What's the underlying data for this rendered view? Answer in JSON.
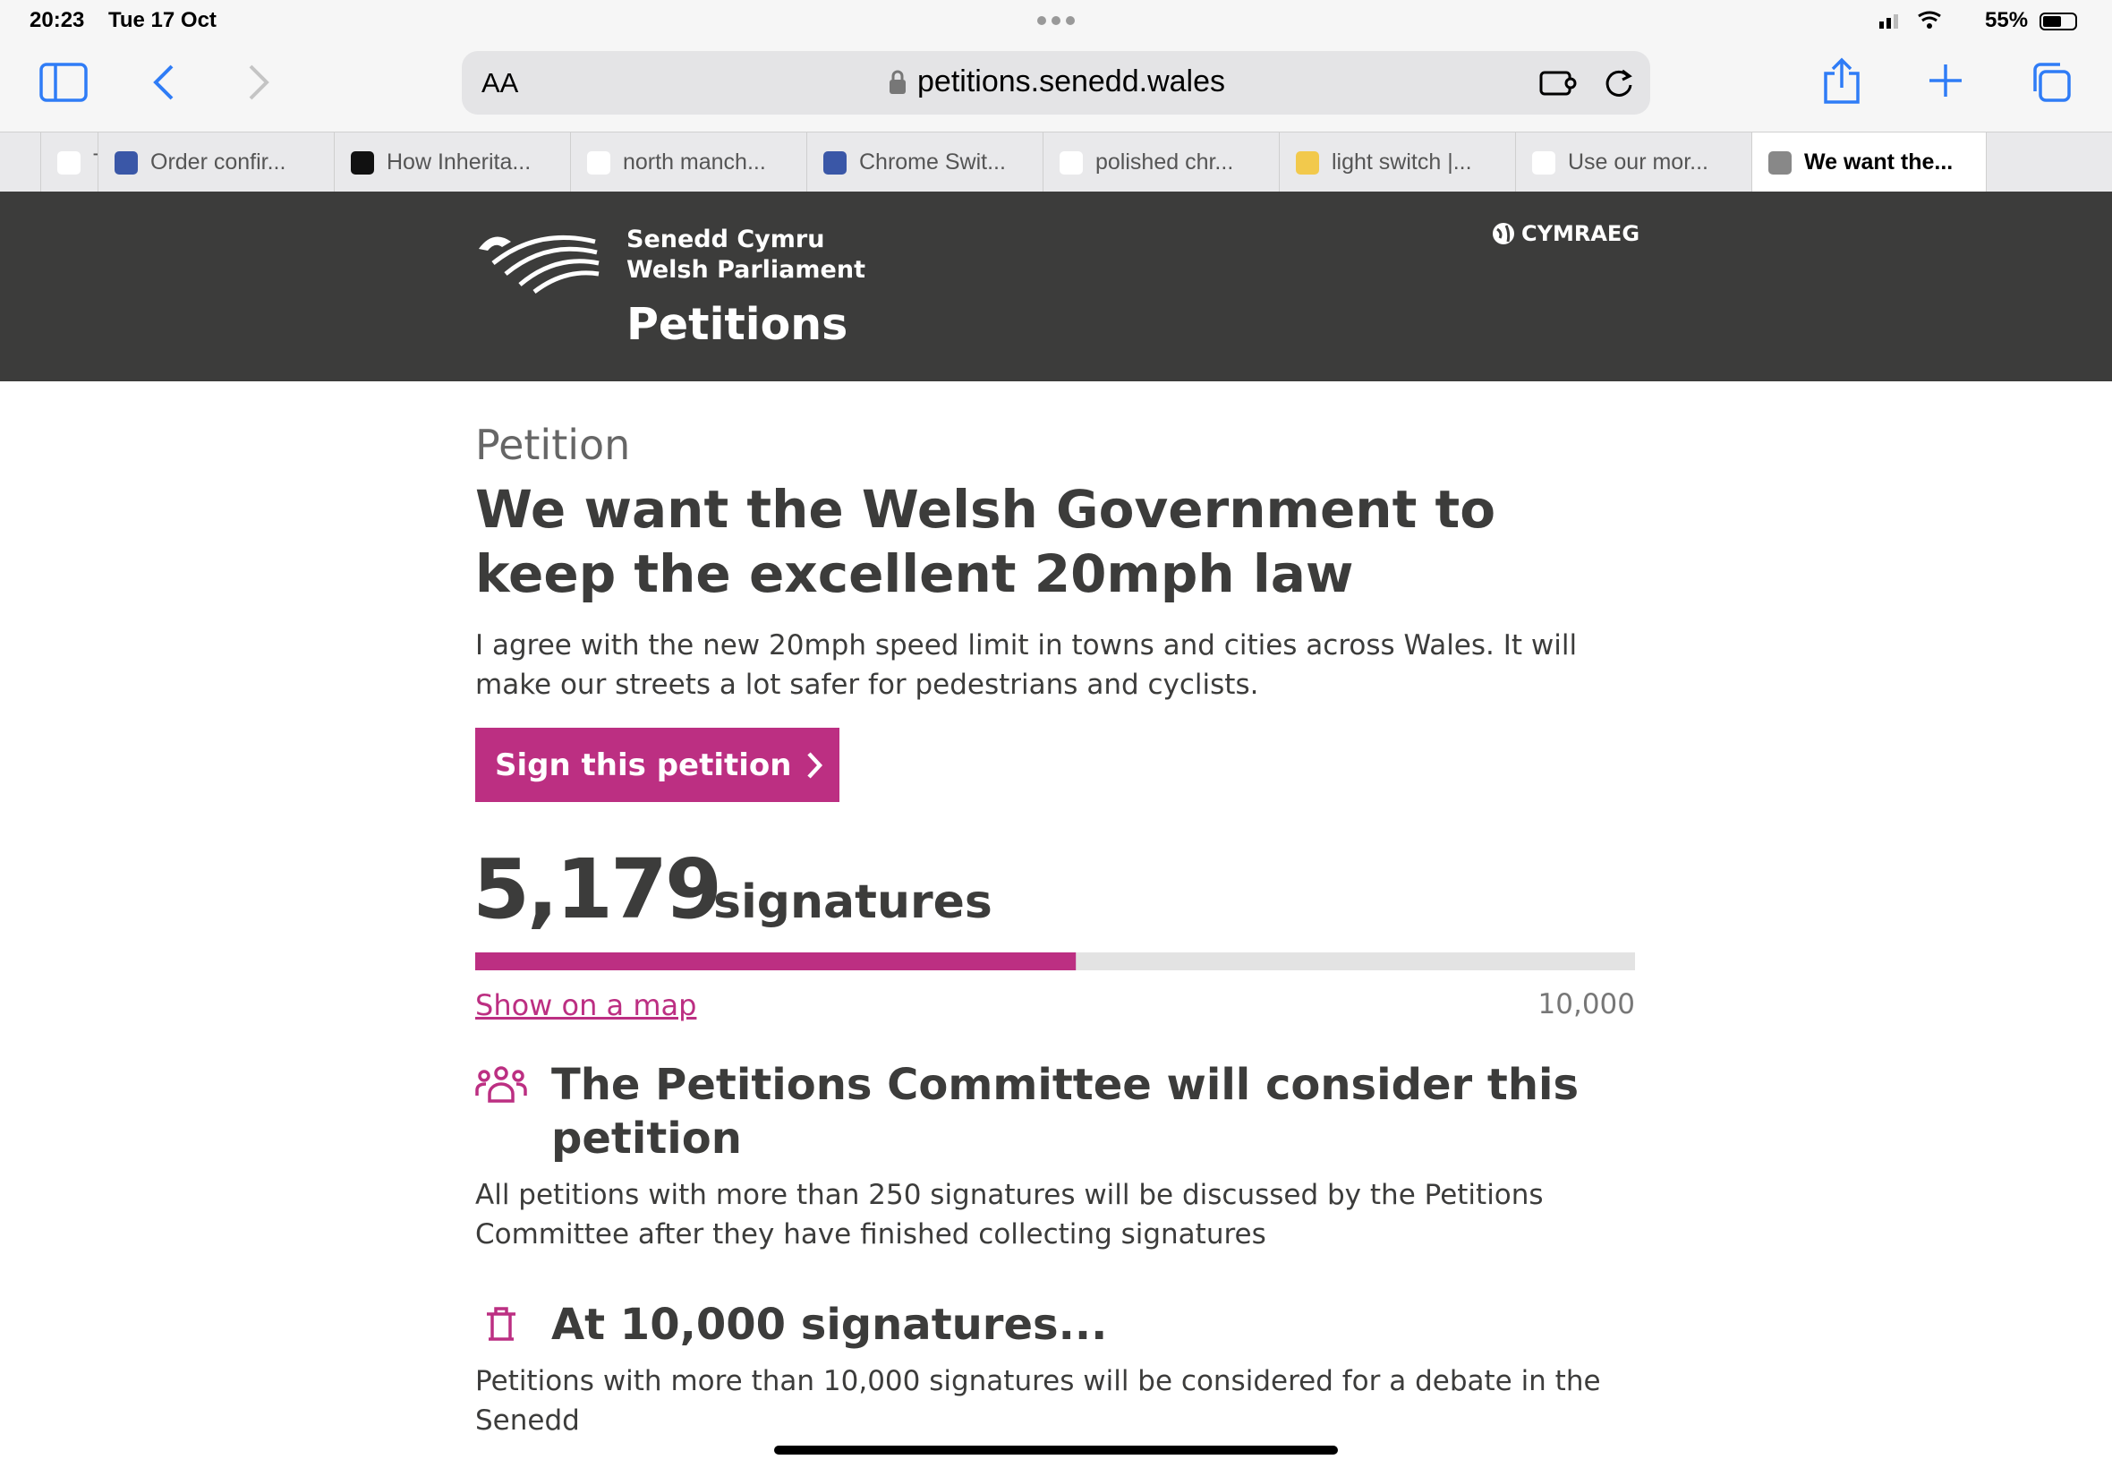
{
  "status_bar": {
    "time": "20:23",
    "date": "Tue 17 Oct",
    "battery": "55%"
  },
  "browser": {
    "text_size": "AA",
    "url": "petitions.senedd.wales",
    "tabs": [
      "",
      "The U",
      "Order confir...",
      "How Inherita...",
      "north manch...",
      "Chrome Swit...",
      "polished chr...",
      "light switch |...",
      "Use our mor...",
      "We want the..."
    ]
  },
  "header": {
    "org_line_1": "Senedd Cymru",
    "org_line_2": "Welsh Parliament",
    "section": "Petitions",
    "language_link": "CYMRAEG"
  },
  "petition": {
    "label": "Petition",
    "title_lines": [
      "We want the Welsh Government to",
      "keep the excellent 20mph law"
    ],
    "description": "I agree with the new 20mph speed limit in towns and cities across Wales. It will make our streets a lot safer for pedestrians and cyclists.",
    "sign_button": "Sign this petition",
    "signatures": {
      "value": 5179,
      "label": "5,179"
    },
    "signatures_word": "signatures",
    "map_link": "Show on a map",
    "goal": {
      "value": 10000,
      "label": "10,000"
    },
    "sections": [
      {
        "heading": "The Petitions Committee will consider this petition",
        "text": "All petitions with more than 250 signatures will be discussed by the Petitions Committee after they have finished collecting signatures"
      },
      {
        "heading": "At 10,000 signatures...",
        "text": "Petitions with more than 10,000 signatures will be considered for a debate in the Senedd"
      }
    ]
  }
}
